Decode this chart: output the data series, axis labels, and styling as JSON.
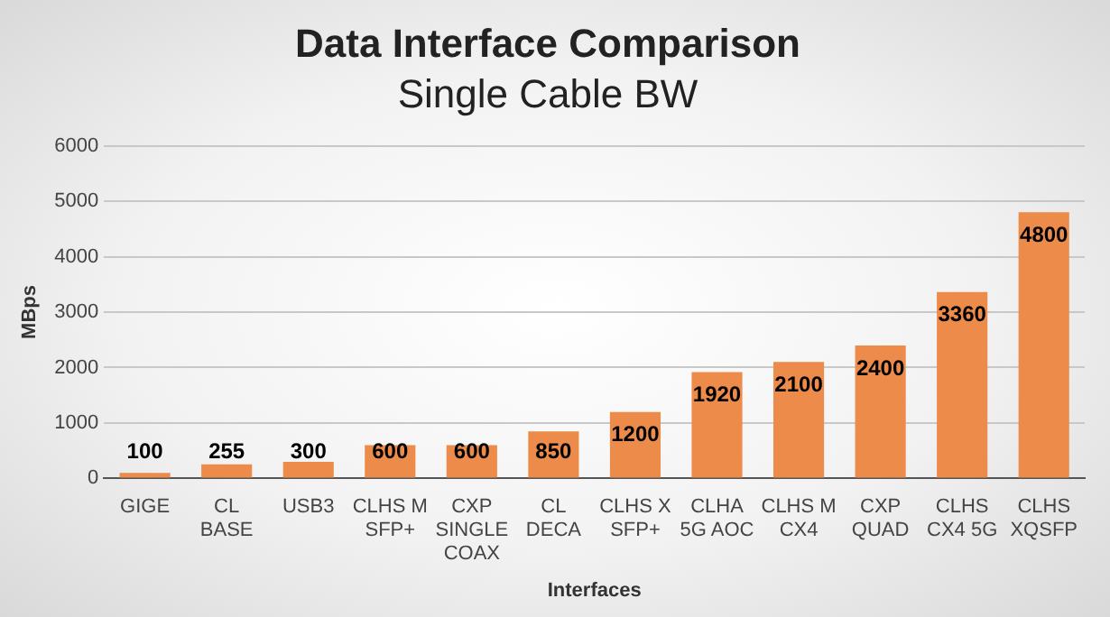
{
  "chart_data": {
    "type": "bar",
    "title": "Data Interface Comparison",
    "subtitle": "Single Cable BW",
    "xlabel": "Interfaces",
    "ylabel": "MBps",
    "categories": [
      "GIGE",
      "CL BASE",
      "USB3",
      "CLHS M SFP+",
      "CXP SINGLE COAX",
      "CL DECA",
      "CLHS X SFP+",
      "CLHA 5G AOC",
      "CLHS M CX4",
      "CXP QUAD",
      "CLHS CX4 5G",
      "CLHS XQSFP"
    ],
    "values": [
      100,
      255,
      300,
      600,
      600,
      850,
      1200,
      1920,
      2100,
      2400,
      3360,
      4800
    ],
    "color": "#ed8b4a",
    "ylim": [
      0,
      6000
    ],
    "yticks": [
      0,
      1000,
      2000,
      3000,
      4000,
      5000,
      6000
    ],
    "grid": "y",
    "legend": false,
    "data_labels": true
  }
}
